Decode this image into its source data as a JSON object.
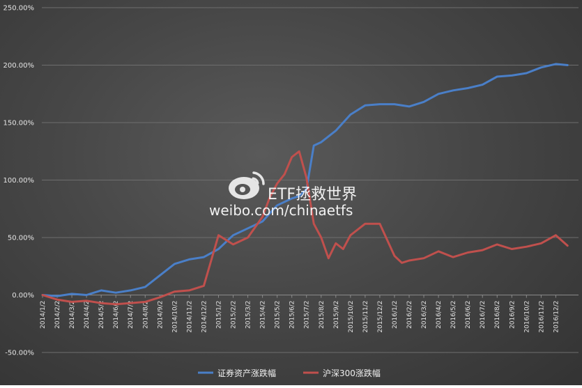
{
  "chart_data": {
    "type": "line",
    "ylim": [
      -50,
      250
    ],
    "yticks": [
      -50,
      0,
      50,
      100,
      150,
      200,
      250
    ],
    "ytick_labels": [
      "-50.00%",
      "0.00%",
      "50.00%",
      "100.00%",
      "150.00%",
      "200.00%",
      "250.00%"
    ],
    "grid": true,
    "legend": "bottom",
    "x_labels": [
      "2014/1/2",
      "2014/2/2",
      "2014/3/2",
      "2014/4/2",
      "2014/5/2",
      "2014/6/2",
      "2014/7/2",
      "2014/8/2",
      "2014/9/2",
      "2014/10/2",
      "2014/11/2",
      "2014/12/2",
      "2015/1/2",
      "2015/2/2",
      "2015/3/2",
      "2015/4/2",
      "2015/5/2",
      "2015/6/2",
      "2015/7/2",
      "2015/8/2",
      "2015/9/2",
      "2015/10/2",
      "2015/11/2",
      "2015/12/2",
      "2016/1/2",
      "2016/2/2",
      "2016/3/2",
      "2016/4/2",
      "2016/5/2",
      "2016/6/2",
      "2016/7/2",
      "2016/8/2",
      "2016/9/2",
      "2016/10/2",
      "2016/11/2",
      "2016/12/2"
    ],
    "series": [
      {
        "name": "证券资产涨跌幅",
        "color": "#4a7fc8",
        "x": [
          0,
          1,
          2,
          3,
          4,
          5,
          6,
          7,
          8,
          9,
          10,
          11,
          12,
          13,
          14,
          15,
          16,
          17,
          17.5,
          18,
          18.5,
          19,
          20,
          21,
          22,
          23,
          24,
          25,
          26,
          27,
          28,
          29,
          30,
          31,
          32,
          33,
          34,
          35,
          35.8
        ],
        "values": [
          0,
          -1,
          1,
          0,
          4,
          2,
          4,
          7,
          17,
          27,
          31,
          33,
          40,
          52,
          58,
          64,
          78,
          84,
          86,
          92,
          130,
          133,
          143,
          157,
          165,
          166,
          166,
          164,
          168,
          175,
          178,
          180,
          183,
          190,
          191,
          193,
          198,
          201,
          200
        ]
      },
      {
        "name": "沪深300涨跌幅",
        "color": "#c0504d",
        "x": [
          0,
          1,
          2,
          3,
          4,
          5,
          6,
          7,
          8,
          9,
          10,
          11,
          12,
          13,
          14,
          15,
          15.5,
          16,
          16.5,
          17,
          17.5,
          18,
          18.5,
          19,
          19.5,
          20,
          20.5,
          21,
          22,
          23,
          23.5,
          24,
          24.5,
          25,
          26,
          27,
          28,
          29,
          30,
          31,
          32,
          33,
          34,
          35,
          35.8
        ],
        "values": [
          0,
          -4,
          -6,
          -5,
          -7,
          -8,
          -7,
          -6,
          -2,
          3,
          4,
          8,
          52,
          44,
          50,
          68,
          85,
          97,
          105,
          120,
          125,
          102,
          62,
          50,
          32,
          45,
          40,
          52,
          62,
          62,
          48,
          34,
          28,
          30,
          32,
          38,
          33,
          37,
          39,
          44,
          40,
          42,
          45,
          52,
          43
        ]
      }
    ]
  },
  "legend": {
    "items": [
      {
        "label": "证券资产涨跌幅",
        "color": "#4a7fc8"
      },
      {
        "label": "沪深300涨跌幅",
        "color": "#c0504d"
      }
    ]
  },
  "watermark": {
    "title": "ETF拯救世界",
    "url": "weibo.com/chinaetfs",
    "icon": "weibo-icon"
  }
}
